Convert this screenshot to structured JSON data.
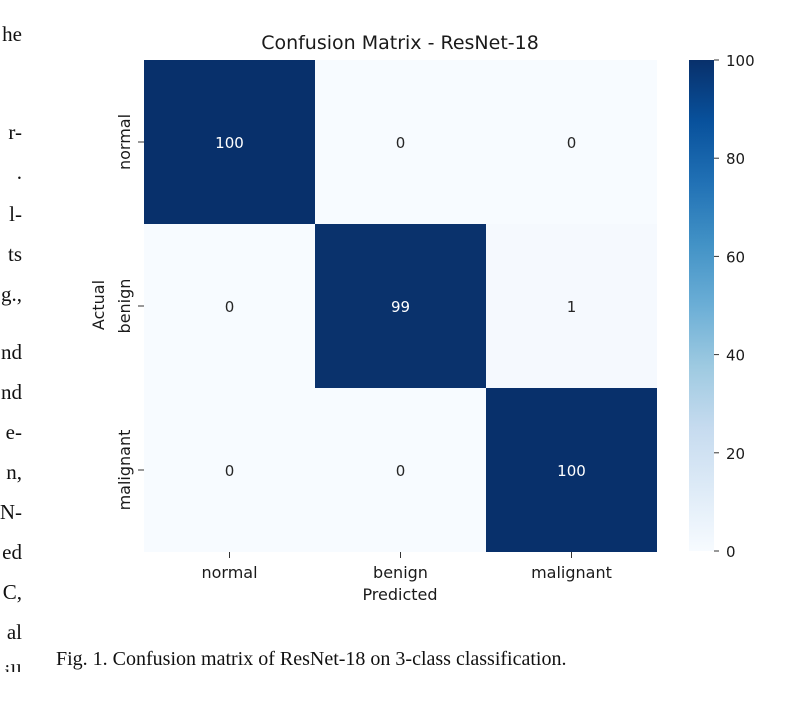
{
  "body_text_fragments": [
    "he",
    "r-",
    ".",
    "l-",
    "ts",
    "g.,",
    "nd",
    "nd",
    "e-",
    "n,",
    "N-",
    "ed",
    "C,",
    "al",
    "ill"
  ],
  "caption": "Fig. 1.  Confusion matrix of ResNet-18 on 3-class classification.",
  "chart_data": {
    "type": "heatmap",
    "title": "Confusion Matrix - ResNet-18",
    "xlabel": "Predicted",
    "ylabel": "Actual",
    "x_categories": [
      "normal",
      "benign",
      "malignant"
    ],
    "y_categories": [
      "normal",
      "benign",
      "malignant"
    ],
    "values": [
      [
        100,
        0,
        0
      ],
      [
        0,
        99,
        1
      ],
      [
        0,
        0,
        100
      ]
    ],
    "colorscale": "Blues",
    "color_low": "#f7fbff",
    "color_high": "#08306b",
    "colorbar_ticks": [
      "0",
      "20",
      "40",
      "60",
      "80",
      "100"
    ],
    "vmin": 0,
    "vmax": 100
  }
}
